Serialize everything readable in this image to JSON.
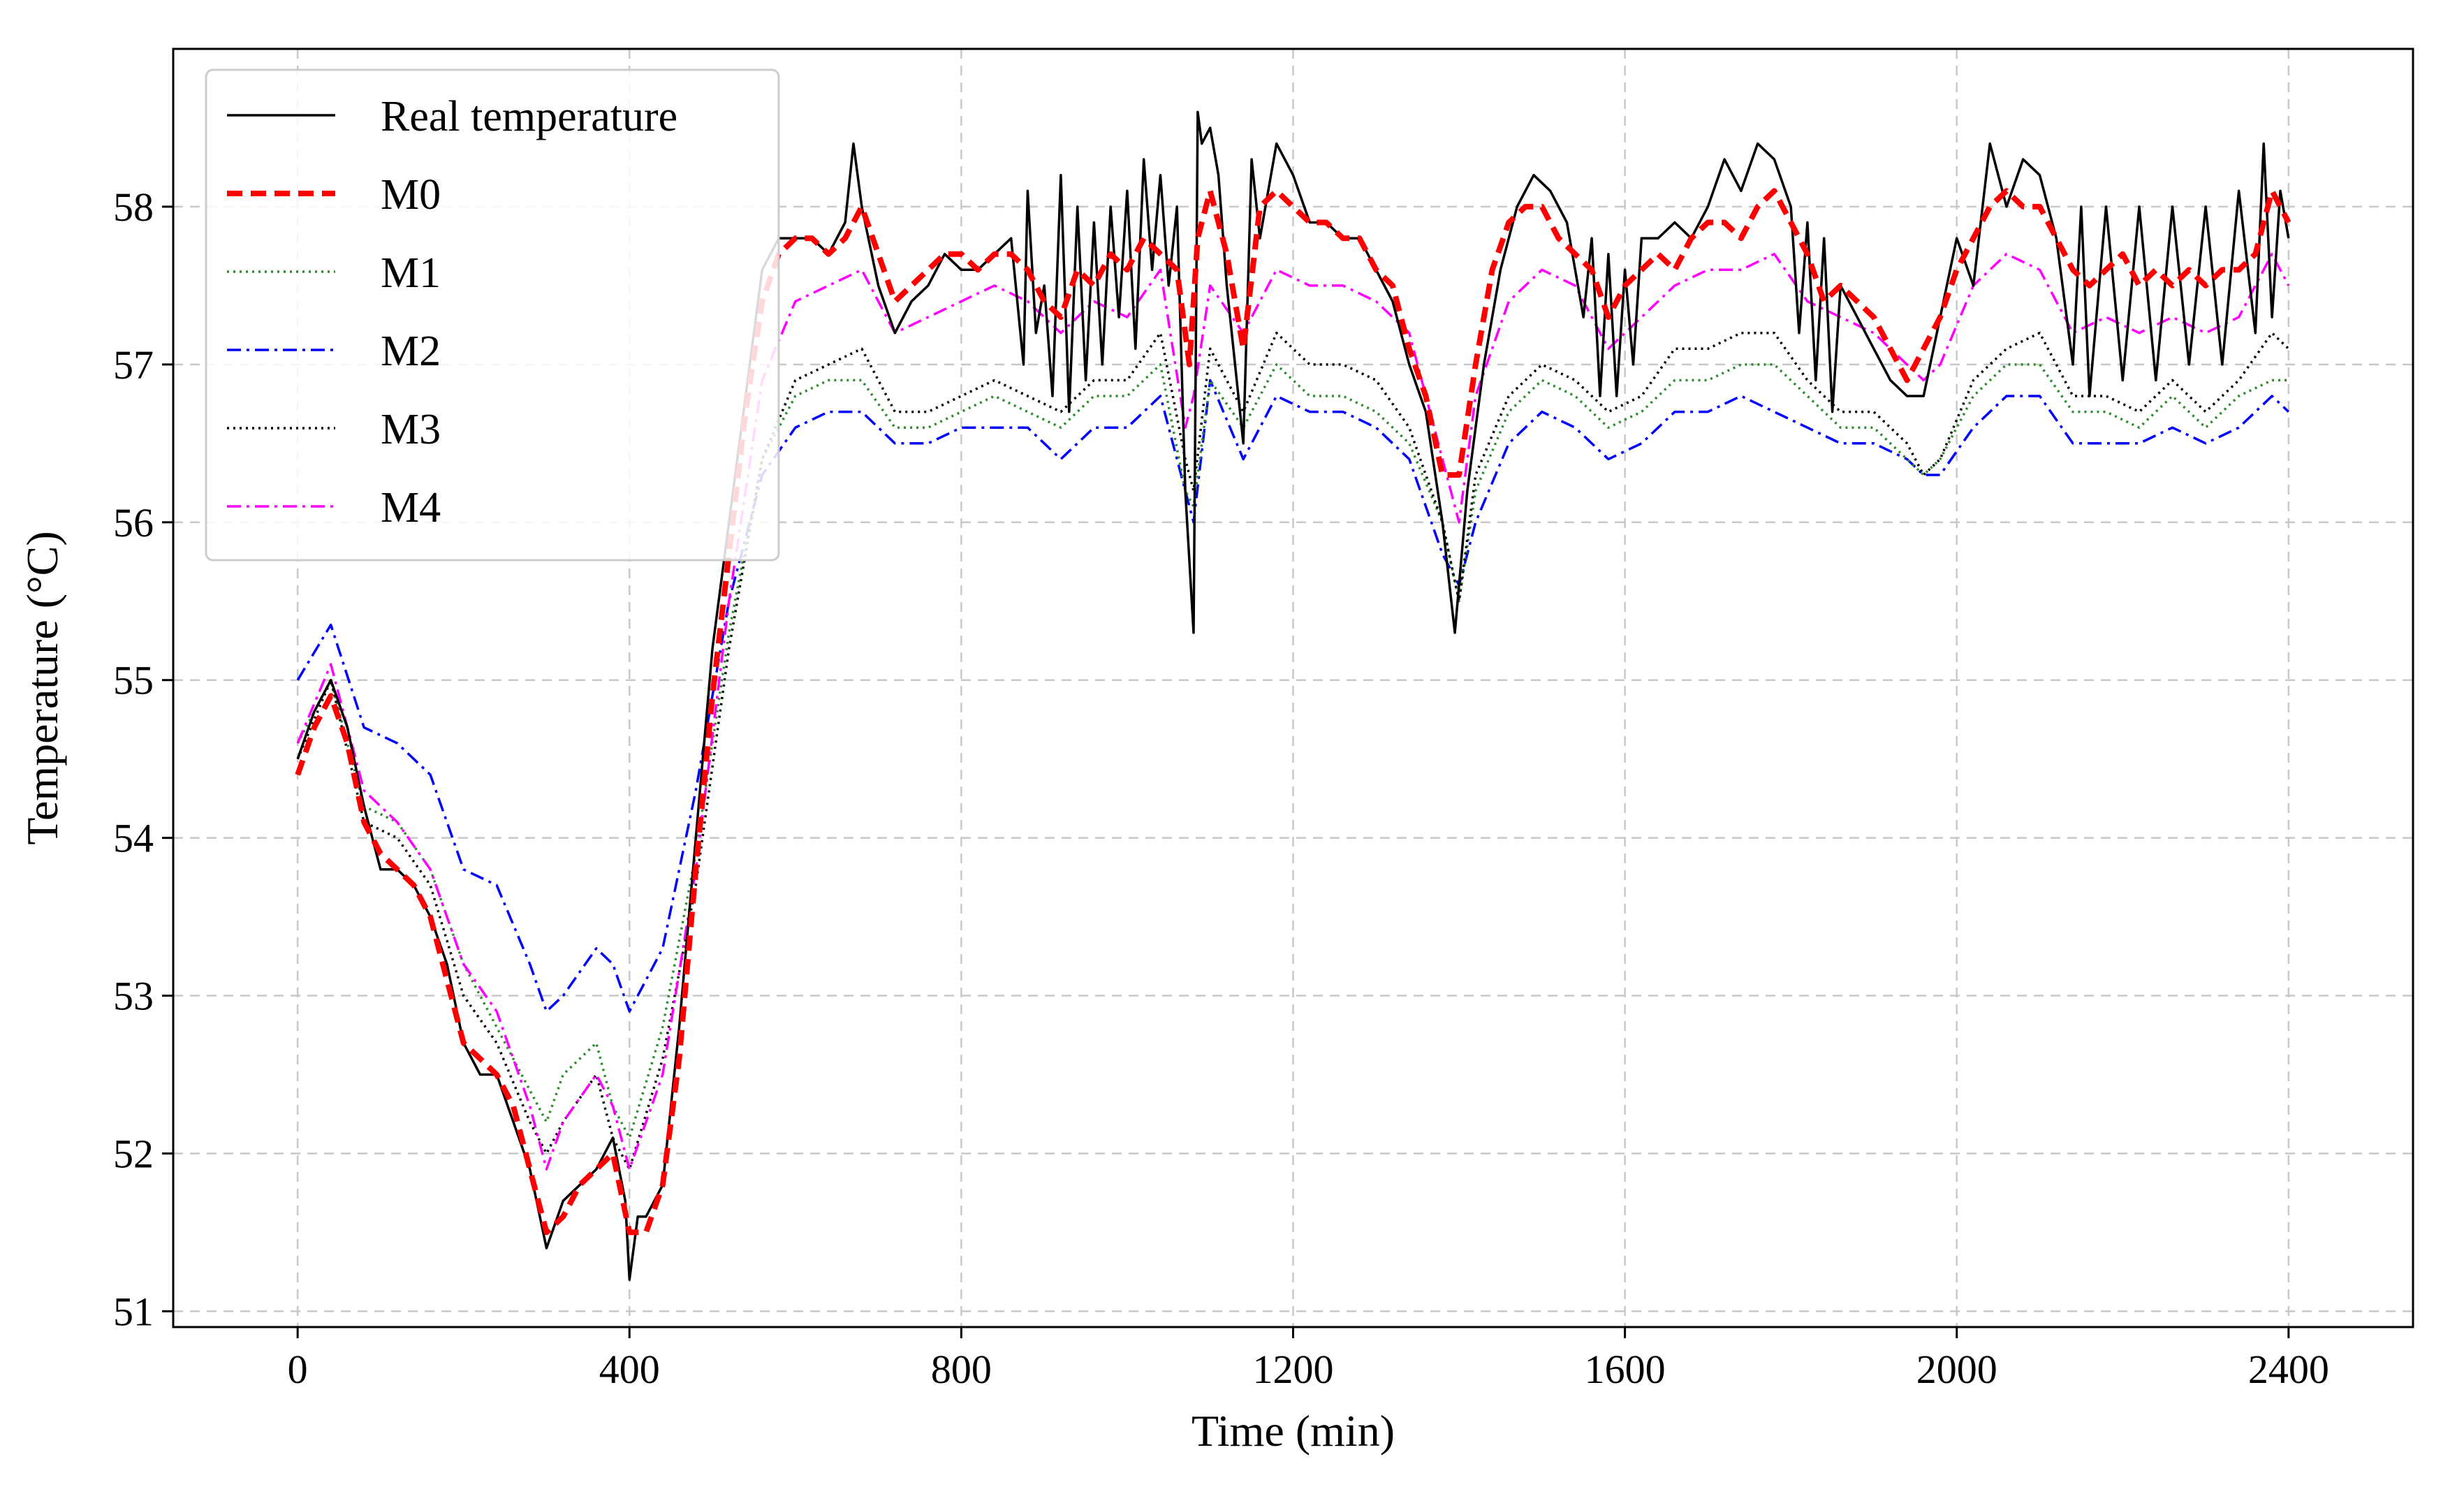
{
  "chart_data": {
    "type": "line",
    "title": "",
    "xlabel": "Time (min)",
    "ylabel": "Temperature (°C)",
    "xlim": [
      -150,
      2550
    ],
    "ylim": [
      50.9,
      59.0
    ],
    "xticks": [
      0,
      400,
      800,
      1200,
      1600,
      2000,
      2400
    ],
    "xtick_labels": [
      "0",
      "400",
      "800",
      "1200",
      "1600",
      "2000",
      "2400"
    ],
    "yticks": [
      51,
      52,
      53,
      54,
      55,
      56,
      57,
      58
    ],
    "ytick_labels": [
      "51",
      "52",
      "53",
      "54",
      "55",
      "56",
      "57",
      "58"
    ],
    "grid": true,
    "legend_position": "top-left",
    "series": [
      {
        "name": "Real temperature",
        "color": "#000000",
        "style": "solid",
        "x": [
          0,
          20,
          40,
          60,
          80,
          100,
          120,
          140,
          160,
          180,
          200,
          220,
          240,
          260,
          280,
          300,
          320,
          340,
          360,
          380,
          395,
          400,
          410,
          420,
          440,
          460,
          480,
          500,
          520,
          540,
          560,
          580,
          600,
          620,
          640,
          660,
          670,
          680,
          700,
          720,
          740,
          760,
          780,
          800,
          820,
          840,
          860,
          875,
          880,
          890,
          900,
          910,
          920,
          930,
          940,
          950,
          960,
          970,
          980,
          990,
          1000,
          1010,
          1020,
          1030,
          1040,
          1050,
          1060,
          1070,
          1080,
          1085,
          1090,
          1100,
          1110,
          1120,
          1130,
          1140,
          1150,
          1160,
          1180,
          1200,
          1220,
          1240,
          1260,
          1280,
          1300,
          1320,
          1340,
          1360,
          1380,
          1395,
          1410,
          1430,
          1450,
          1470,
          1490,
          1510,
          1530,
          1550,
          1560,
          1570,
          1580,
          1590,
          1600,
          1610,
          1620,
          1640,
          1660,
          1680,
          1700,
          1720,
          1740,
          1760,
          1780,
          1800,
          1810,
          1820,
          1830,
          1840,
          1850,
          1860,
          1880,
          1900,
          1920,
          1940,
          1960,
          1980,
          2000,
          2020,
          2040,
          2060,
          2080,
          2100,
          2120,
          2140,
          2150,
          2160,
          2180,
          2200,
          2220,
          2240,
          2260,
          2280,
          2300,
          2320,
          2340,
          2360,
          2370,
          2380,
          2390,
          2400
        ],
        "y": [
          54.5,
          54.8,
          55.0,
          54.7,
          54.2,
          53.8,
          53.8,
          53.7,
          53.5,
          53.2,
          52.7,
          52.5,
          52.5,
          52.2,
          51.9,
          51.4,
          51.7,
          51.8,
          51.9,
          52.1,
          51.7,
          51.2,
          51.6,
          51.6,
          51.8,
          52.8,
          54.0,
          55.2,
          56.0,
          56.8,
          57.6,
          57.8,
          57.8,
          57.8,
          57.7,
          57.9,
          58.4,
          58.0,
          57.5,
          57.2,
          57.4,
          57.5,
          57.7,
          57.6,
          57.6,
          57.7,
          57.8,
          57.0,
          58.1,
          57.2,
          57.5,
          56.8,
          58.2,
          56.7,
          58.0,
          56.9,
          57.9,
          57.0,
          58.0,
          57.3,
          58.1,
          57.1,
          58.3,
          57.6,
          58.2,
          57.5,
          58.0,
          56.2,
          55.3,
          58.6,
          58.4,
          58.5,
          58.2,
          57.5,
          57.0,
          56.5,
          58.3,
          57.8,
          58.4,
          58.2,
          57.9,
          57.9,
          57.8,
          57.8,
          57.6,
          57.4,
          57.0,
          56.7,
          56.0,
          55.3,
          56.2,
          57.0,
          57.6,
          58.0,
          58.2,
          58.1,
          57.9,
          57.3,
          57.8,
          56.8,
          57.7,
          56.8,
          57.6,
          57.0,
          57.8,
          57.8,
          57.9,
          57.8,
          58.0,
          58.3,
          58.1,
          58.4,
          58.3,
          58.0,
          57.2,
          57.9,
          56.9,
          57.8,
          56.7,
          57.5,
          57.3,
          57.1,
          56.9,
          56.8,
          56.8,
          57.3,
          57.8,
          57.5,
          58.4,
          58.0,
          58.3,
          58.2,
          57.8,
          57.0,
          58.0,
          56.8,
          58.0,
          56.9,
          58.0,
          56.9,
          58.0,
          57.0,
          58.0,
          57.0,
          58.1,
          57.2,
          58.4,
          57.3,
          58.1,
          57.8
        ]
      },
      {
        "name": "M0",
        "color": "#ff0000",
        "style": "dashed",
        "x": [
          0,
          20,
          40,
          60,
          80,
          100,
          120,
          140,
          160,
          180,
          200,
          220,
          240,
          260,
          280,
          300,
          320,
          340,
          360,
          380,
          400,
          420,
          440,
          460,
          480,
          500,
          520,
          540,
          560,
          580,
          600,
          620,
          640,
          660,
          680,
          700,
          720,
          740,
          760,
          780,
          800,
          820,
          840,
          860,
          880,
          900,
          920,
          940,
          960,
          980,
          1000,
          1020,
          1040,
          1060,
          1075,
          1085,
          1100,
          1120,
          1140,
          1160,
          1180,
          1200,
          1220,
          1240,
          1260,
          1280,
          1300,
          1320,
          1340,
          1360,
          1380,
          1400,
          1420,
          1440,
          1460,
          1480,
          1500,
          1520,
          1540,
          1560,
          1580,
          1600,
          1620,
          1640,
          1660,
          1680,
          1700,
          1720,
          1740,
          1760,
          1780,
          1800,
          1820,
          1840,
          1860,
          1880,
          1900,
          1920,
          1940,
          1960,
          1980,
          2000,
          2020,
          2040,
          2060,
          2080,
          2100,
          2120,
          2140,
          2160,
          2180,
          2200,
          2220,
          2240,
          2260,
          2280,
          2300,
          2320,
          2340,
          2360,
          2380,
          2400
        ],
        "y": [
          54.4,
          54.7,
          54.9,
          54.6,
          54.1,
          53.9,
          53.8,
          53.7,
          53.5,
          53.1,
          52.7,
          52.6,
          52.5,
          52.3,
          51.9,
          51.5,
          51.6,
          51.8,
          51.9,
          52.0,
          51.5,
          51.5,
          51.8,
          52.6,
          53.8,
          54.9,
          55.8,
          56.7,
          57.4,
          57.7,
          57.8,
          57.8,
          57.7,
          57.8,
          58.0,
          57.7,
          57.4,
          57.5,
          57.6,
          57.7,
          57.7,
          57.6,
          57.7,
          57.7,
          57.6,
          57.4,
          57.3,
          57.6,
          57.5,
          57.7,
          57.6,
          57.8,
          57.7,
          57.6,
          57.0,
          57.8,
          58.1,
          57.7,
          57.1,
          58.0,
          58.1,
          58.0,
          57.9,
          57.9,
          57.8,
          57.8,
          57.6,
          57.5,
          57.1,
          56.8,
          56.3,
          56.3,
          57.0,
          57.6,
          57.9,
          58.0,
          58.0,
          57.8,
          57.7,
          57.6,
          57.3,
          57.5,
          57.6,
          57.7,
          57.6,
          57.8,
          57.9,
          57.9,
          57.8,
          58.0,
          58.1,
          57.9,
          57.7,
          57.4,
          57.5,
          57.4,
          57.3,
          57.1,
          56.9,
          57.1,
          57.3,
          57.6,
          57.8,
          58.0,
          58.1,
          58.0,
          58.0,
          57.8,
          57.6,
          57.5,
          57.6,
          57.7,
          57.5,
          57.6,
          57.5,
          57.6,
          57.5,
          57.6,
          57.6,
          57.7,
          58.1,
          57.9
        ]
      },
      {
        "name": "M1",
        "color": "#2e8b2e",
        "style": "dotted",
        "x": [
          0,
          40,
          80,
          120,
          160,
          200,
          240,
          280,
          300,
          320,
          360,
          380,
          400,
          440,
          480,
          520,
          560,
          600,
          640,
          680,
          720,
          760,
          800,
          840,
          880,
          920,
          960,
          1000,
          1040,
          1070,
          1080,
          1100,
          1140,
          1180,
          1220,
          1260,
          1300,
          1340,
          1380,
          1400,
          1420,
          1460,
          1500,
          1540,
          1580,
          1620,
          1660,
          1700,
          1740,
          1780,
          1820,
          1860,
          1900,
          1940,
          1960,
          1980,
          2020,
          2060,
          2100,
          2140,
          2180,
          2220,
          2260,
          2300,
          2340,
          2380,
          2400
        ],
        "y": [
          54.6,
          55.0,
          54.2,
          54.1,
          53.8,
          53.2,
          52.8,
          52.4,
          52.2,
          52.5,
          52.7,
          52.3,
          52.1,
          52.8,
          53.9,
          55.3,
          56.4,
          56.8,
          56.9,
          56.9,
          56.6,
          56.6,
          56.7,
          56.8,
          56.7,
          56.6,
          56.8,
          56.8,
          57.0,
          56.2,
          56.1,
          56.9,
          56.6,
          57.0,
          56.8,
          56.8,
          56.7,
          56.5,
          56.0,
          55.5,
          56.2,
          56.7,
          56.9,
          56.8,
          56.6,
          56.7,
          56.9,
          56.9,
          57.0,
          57.0,
          56.8,
          56.6,
          56.6,
          56.4,
          56.3,
          56.4,
          56.8,
          57.0,
          57.0,
          56.7,
          56.7,
          56.6,
          56.8,
          56.6,
          56.8,
          56.9,
          56.9
        ]
      },
      {
        "name": "M2",
        "color": "#0000ff",
        "style": "dashdot",
        "x": [
          0,
          40,
          80,
          120,
          160,
          200,
          240,
          280,
          300,
          320,
          360,
          380,
          400,
          440,
          480,
          520,
          560,
          600,
          640,
          680,
          720,
          760,
          800,
          840,
          880,
          920,
          960,
          1000,
          1040,
          1070,
          1080,
          1100,
          1140,
          1180,
          1220,
          1260,
          1300,
          1340,
          1380,
          1400,
          1420,
          1460,
          1500,
          1540,
          1580,
          1620,
          1660,
          1700,
          1740,
          1780,
          1820,
          1860,
          1900,
          1940,
          1960,
          1980,
          2020,
          2060,
          2100,
          2140,
          2180,
          2220,
          2260,
          2300,
          2340,
          2380,
          2400
        ],
        "y": [
          55.0,
          55.35,
          54.7,
          54.6,
          54.4,
          53.8,
          53.7,
          53.2,
          52.9,
          53.0,
          53.3,
          53.2,
          52.9,
          53.3,
          54.3,
          55.5,
          56.3,
          56.6,
          56.7,
          56.7,
          56.5,
          56.5,
          56.6,
          56.6,
          56.6,
          56.4,
          56.6,
          56.6,
          56.8,
          56.2,
          56.0,
          56.9,
          56.4,
          56.8,
          56.7,
          56.7,
          56.6,
          56.4,
          55.8,
          55.6,
          56.0,
          56.5,
          56.7,
          56.6,
          56.4,
          56.5,
          56.7,
          56.7,
          56.8,
          56.7,
          56.6,
          56.5,
          56.5,
          56.4,
          56.3,
          56.3,
          56.6,
          56.8,
          56.8,
          56.5,
          56.5,
          56.5,
          56.6,
          56.5,
          56.6,
          56.8,
          56.7
        ]
      },
      {
        "name": "M3",
        "color": "#000000",
        "style": "dotted",
        "x": [
          0,
          40,
          80,
          120,
          160,
          200,
          240,
          280,
          300,
          320,
          360,
          380,
          400,
          440,
          480,
          520,
          560,
          600,
          640,
          680,
          720,
          760,
          800,
          840,
          880,
          920,
          960,
          1000,
          1040,
          1070,
          1080,
          1100,
          1140,
          1180,
          1220,
          1260,
          1300,
          1340,
          1380,
          1400,
          1420,
          1460,
          1500,
          1540,
          1580,
          1620,
          1660,
          1700,
          1740,
          1780,
          1820,
          1860,
          1900,
          1940,
          1960,
          1980,
          2020,
          2060,
          2100,
          2140,
          2180,
          2220,
          2260,
          2300,
          2340,
          2380,
          2400
        ],
        "y": [
          54.5,
          55.0,
          54.1,
          54.0,
          53.7,
          53.0,
          52.7,
          52.2,
          52.0,
          52.2,
          52.5,
          52.1,
          51.9,
          52.6,
          53.7,
          55.2,
          56.4,
          56.9,
          57.0,
          57.1,
          56.7,
          56.7,
          56.8,
          56.9,
          56.8,
          56.7,
          56.9,
          56.9,
          57.2,
          56.4,
          56.2,
          57.1,
          56.7,
          57.2,
          57.0,
          57.0,
          56.9,
          56.6,
          56.0,
          55.5,
          56.3,
          56.8,
          57.0,
          56.9,
          56.7,
          56.8,
          57.1,
          57.1,
          57.2,
          57.2,
          56.9,
          56.7,
          56.7,
          56.5,
          56.3,
          56.4,
          56.9,
          57.1,
          57.2,
          56.8,
          56.8,
          56.7,
          56.9,
          56.7,
          56.9,
          57.2,
          57.1
        ]
      },
      {
        "name": "M4",
        "color": "#ff00ff",
        "style": "dashdot",
        "x": [
          0,
          40,
          80,
          120,
          160,
          200,
          240,
          280,
          300,
          320,
          360,
          380,
          400,
          440,
          480,
          520,
          560,
          600,
          640,
          680,
          720,
          760,
          800,
          840,
          880,
          920,
          960,
          1000,
          1040,
          1070,
          1080,
          1100,
          1140,
          1180,
          1220,
          1260,
          1300,
          1340,
          1380,
          1400,
          1420,
          1460,
          1500,
          1540,
          1580,
          1620,
          1660,
          1700,
          1740,
          1780,
          1820,
          1860,
          1900,
          1940,
          1960,
          1980,
          2020,
          2060,
          2100,
          2140,
          2180,
          2220,
          2260,
          2300,
          2340,
          2380,
          2400
        ],
        "y": [
          54.6,
          55.1,
          54.3,
          54.1,
          53.8,
          53.2,
          52.9,
          52.3,
          51.9,
          52.2,
          52.5,
          52.3,
          51.9,
          52.5,
          53.8,
          55.5,
          56.9,
          57.4,
          57.5,
          57.6,
          57.2,
          57.3,
          57.4,
          57.5,
          57.4,
          57.2,
          57.4,
          57.3,
          57.6,
          56.6,
          56.8,
          57.5,
          57.2,
          57.6,
          57.5,
          57.5,
          57.4,
          57.2,
          56.4,
          56.0,
          56.8,
          57.4,
          57.6,
          57.5,
          57.1,
          57.3,
          57.5,
          57.6,
          57.6,
          57.7,
          57.4,
          57.3,
          57.2,
          57.0,
          56.9,
          57.0,
          57.5,
          57.7,
          57.6,
          57.2,
          57.3,
          57.2,
          57.3,
          57.2,
          57.3,
          57.7,
          57.5
        ]
      }
    ]
  }
}
